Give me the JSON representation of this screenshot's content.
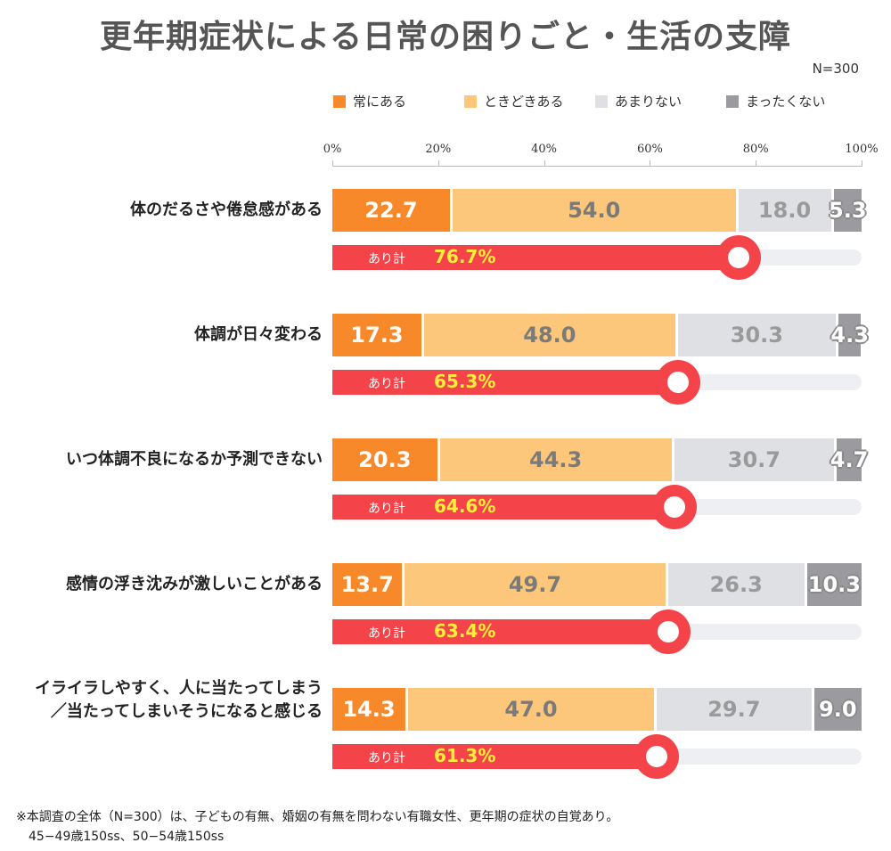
{
  "chart_data": {
    "type": "bar",
    "stacked": true,
    "orientation": "horizontal",
    "title": "更年期症状による日常の困りごと・生活の支障",
    "sample": "N=300",
    "legend_position": "top-right",
    "xlim": [
      0,
      100
    ],
    "x_ticks": [
      "0%",
      "20%",
      "40%",
      "60%",
      "80%",
      "100%"
    ],
    "categories": [
      "体のだるさや倦怠感がある",
      "体調が日々変わる",
      "いつ体調不良になるか予測できない",
      "感情の浮き沈みが激しいことがある",
      "イライラしやすく、人に当たってしまう／当たってしまいそうになると感じる"
    ],
    "category_lines": [
      [
        "体のだるさや倦怠感がある"
      ],
      [
        "体調が日々変わる"
      ],
      [
        "いつ体調不良になるか予測できない"
      ],
      [
        "感情の浮き沈みが激しいことがある"
      ],
      [
        "イライラしやすく、人に当たってしまう",
        "／当たってしまいそうになると感じる"
      ]
    ],
    "series": [
      {
        "name": "常にある",
        "color": "#f7892b",
        "values": [
          22.7,
          17.3,
          20.3,
          13.7,
          14.3
        ]
      },
      {
        "name": "ときどきある",
        "color": "#fcc77a",
        "values": [
          54.0,
          48.0,
          44.3,
          49.7,
          47.0
        ]
      },
      {
        "name": "あまりない",
        "color": "#dfe0e4",
        "values": [
          18.0,
          30.3,
          30.7,
          26.3,
          29.7
        ]
      },
      {
        "name": "まったくない",
        "color": "#9b9a9f",
        "values": [
          5.3,
          4.3,
          4.7,
          10.3,
          9.0
        ]
      }
    ],
    "total": {
      "label": "あり計",
      "color": "#f44449",
      "values": [
        76.7,
        65.3,
        64.6,
        63.4,
        61.3
      ]
    }
  },
  "note": [
    "※本調査の全体（N=300）は、子どもの有無、婚姻の有無を問わない有職女性、更年期の症状の自覚あり。",
    "　45−49歳150ss、50−54歳150ss"
  ]
}
